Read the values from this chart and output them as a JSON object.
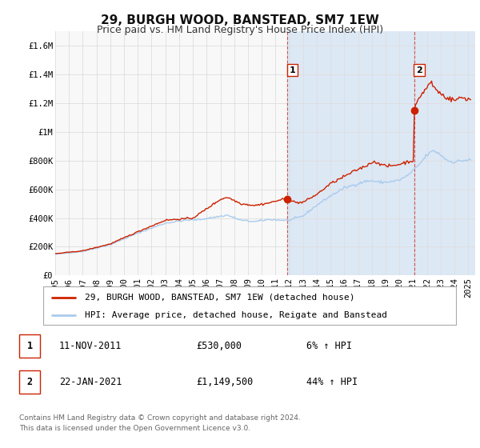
{
  "title": "29, BURGH WOOD, BANSTEAD, SM7 1EW",
  "subtitle": "Price paid vs. HM Land Registry's House Price Index (HPI)",
  "ylim": [
    0,
    1700000
  ],
  "xlim_start": 1995.0,
  "xlim_end": 2025.5,
  "yticks": [
    0,
    200000,
    400000,
    600000,
    800000,
    1000000,
    1200000,
    1400000,
    1600000
  ],
  "ytick_labels": [
    "£0",
    "£200K",
    "£400K",
    "£600K",
    "£800K",
    "£1M",
    "£1.2M",
    "£1.4M",
    "£1.6M"
  ],
  "xticks": [
    1995,
    1996,
    1997,
    1998,
    1999,
    2000,
    2001,
    2002,
    2003,
    2004,
    2005,
    2006,
    2007,
    2008,
    2009,
    2010,
    2011,
    2012,
    2013,
    2014,
    2015,
    2016,
    2017,
    2018,
    2019,
    2020,
    2021,
    2022,
    2023,
    2024,
    2025
  ],
  "hpi_color": "#aaccee",
  "price_color": "#cc2200",
  "vline_color": "#cc3333",
  "marker_color": "#cc2200",
  "marker_size": 6,
  "legend_label_price": "29, BURGH WOOD, BANSTEAD, SM7 1EW (detached house)",
  "legend_label_hpi": "HPI: Average price, detached house, Reigate and Banstead",
  "annotation_1_label": "1",
  "annotation_1_date": 2011.87,
  "annotation_1_value": 530000,
  "annotation_1_text": "11-NOV-2011",
  "annotation_1_price": "£530,000",
  "annotation_1_hpi": "6% ↑ HPI",
  "annotation_2_label": "2",
  "annotation_2_date": 2021.06,
  "annotation_2_value": 1149500,
  "annotation_2_text": "22-JAN-2021",
  "annotation_2_price": "£1,149,500",
  "annotation_2_hpi": "44% ↑ HPI",
  "footer_line1": "Contains HM Land Registry data © Crown copyright and database right 2024.",
  "footer_line2": "This data is licensed under the Open Government Licence v3.0.",
  "background_color": "#ffffff",
  "plot_bg_color": "#f8f8f8",
  "grid_color": "#dddddd",
  "shaded_region_color": "#dde8f5",
  "title_fontsize": 11,
  "subtitle_fontsize": 9,
  "tick_fontsize": 7.5,
  "legend_fontsize": 8,
  "footer_fontsize": 6.5
}
